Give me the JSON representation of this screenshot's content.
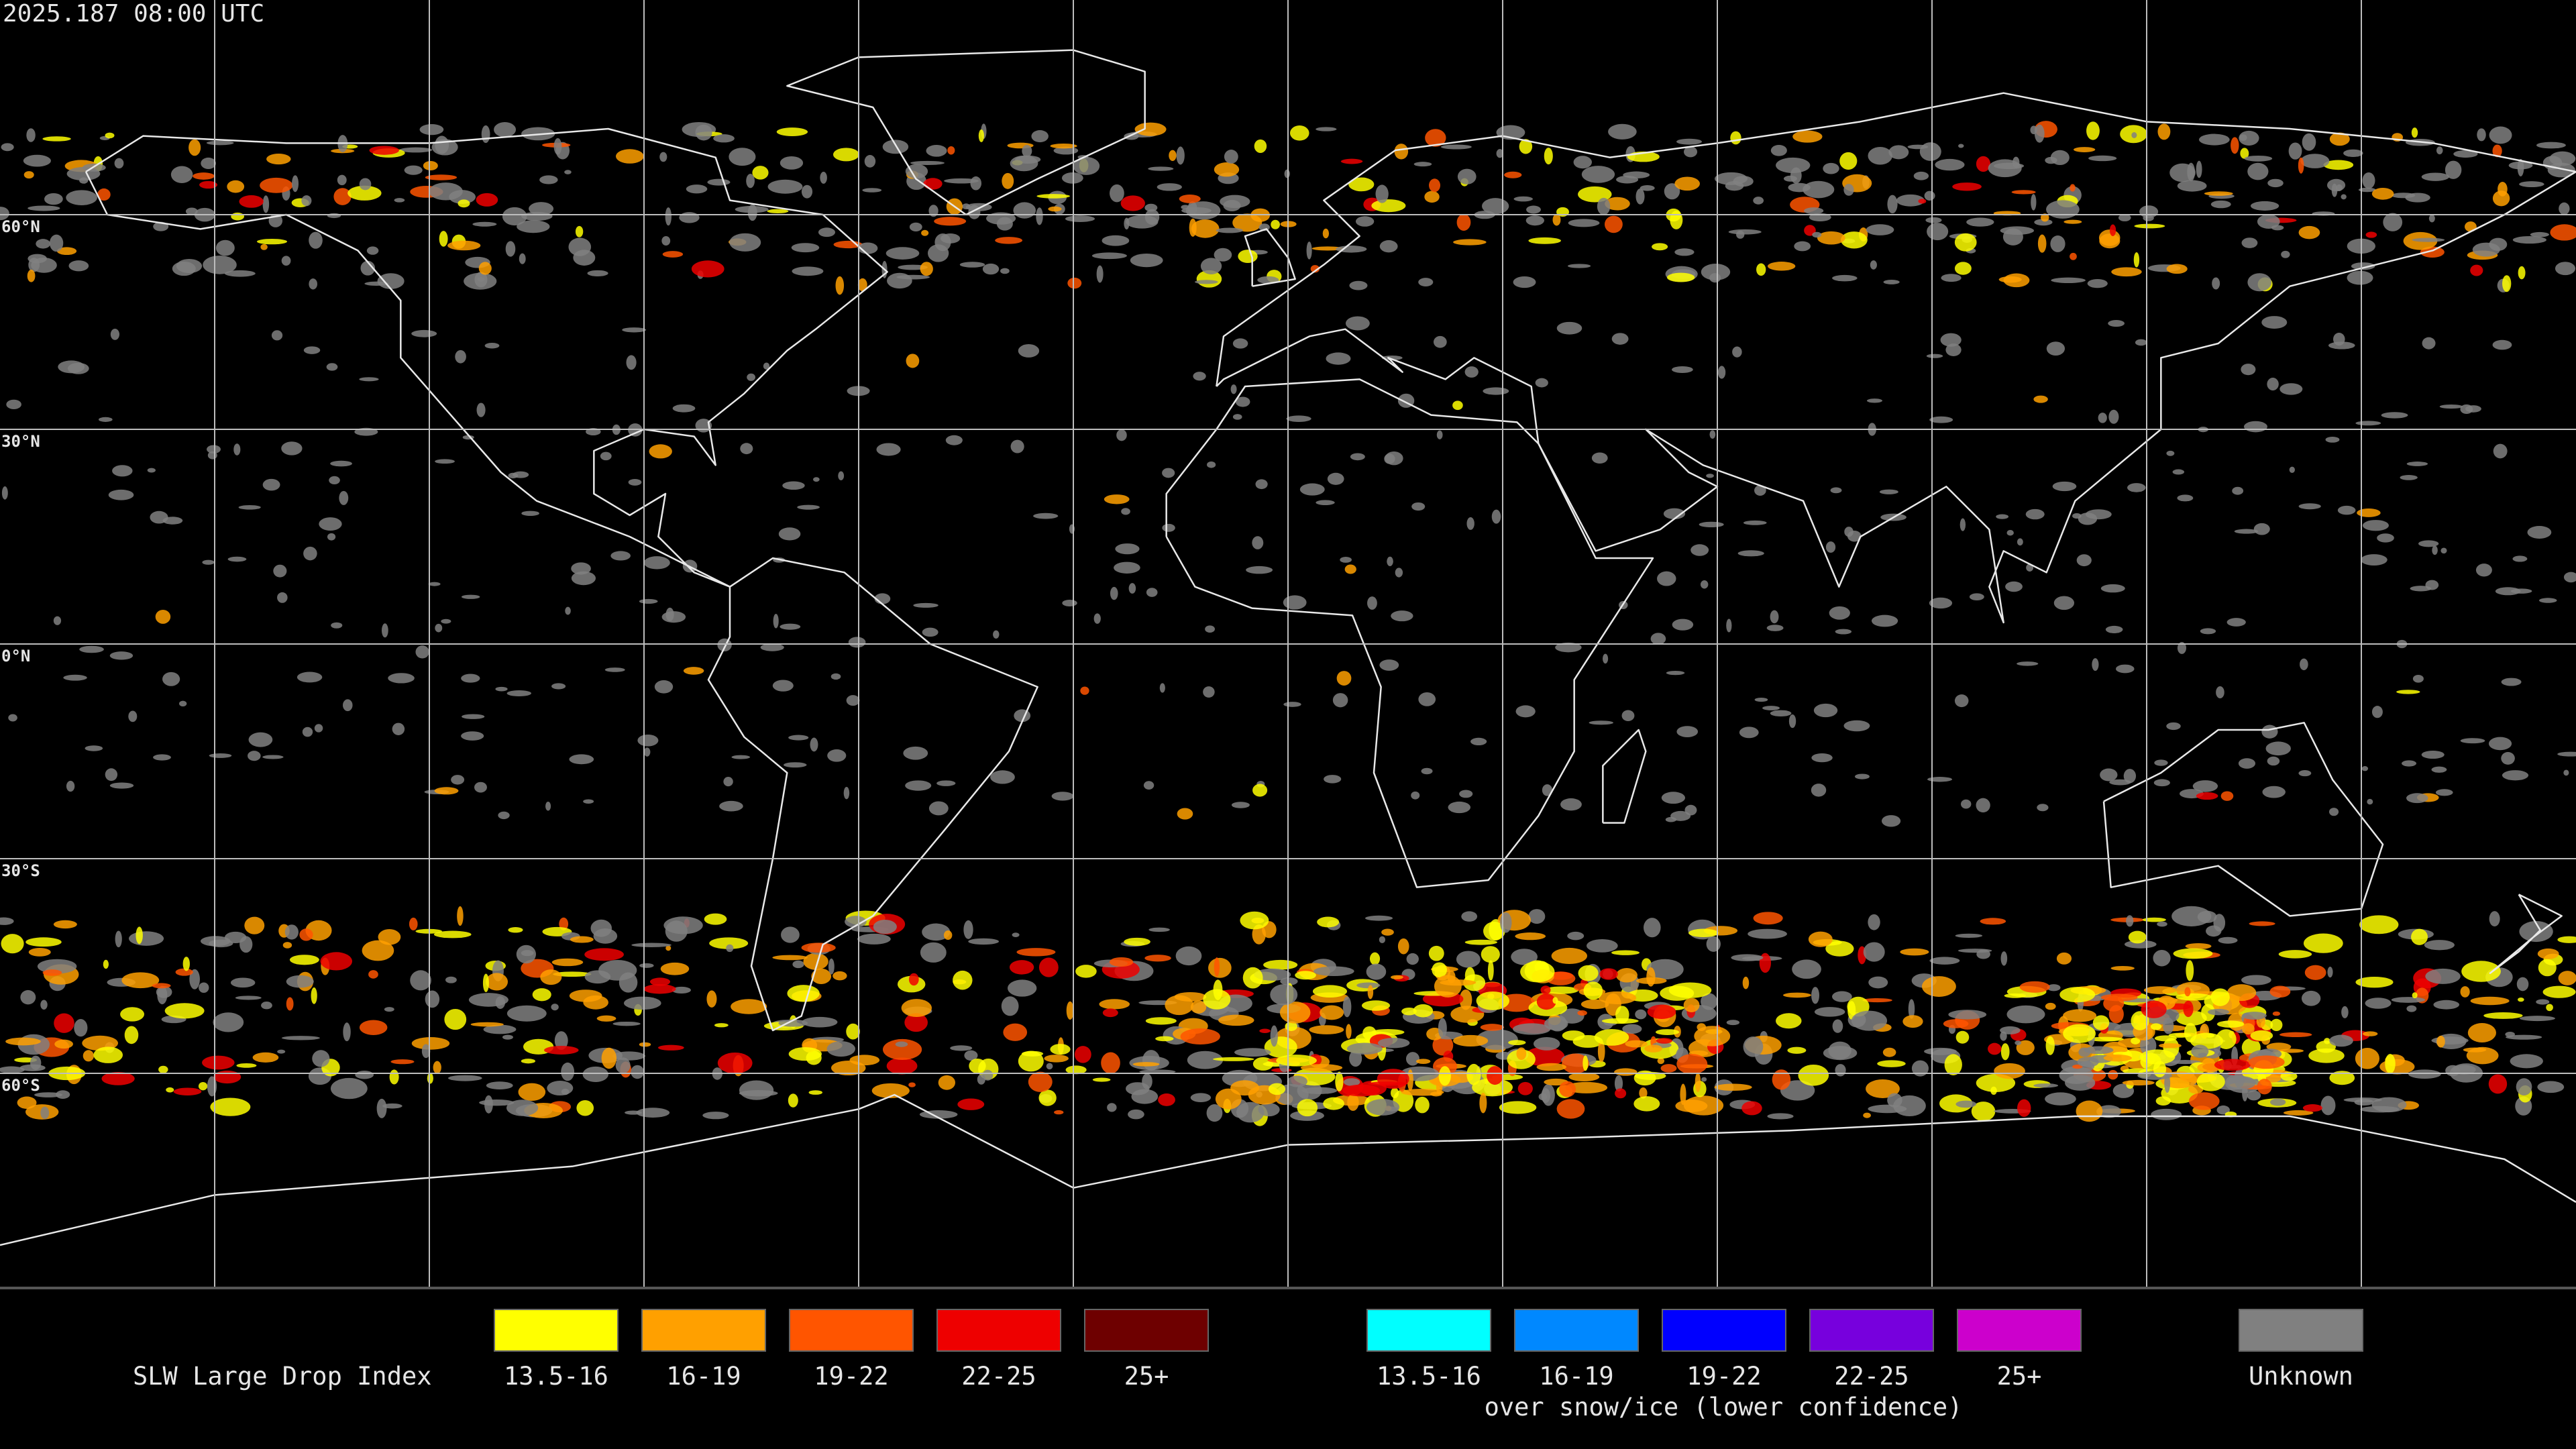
{
  "header": {
    "timestamp": "2025.187 08:00 UTC"
  },
  "map": {
    "latitude_labels": [
      "60°N",
      "30°N",
      "0°N",
      "30°S",
      "60°S"
    ]
  },
  "legend": {
    "title": "SLW Large Drop Index",
    "groups": [
      {
        "items": [
          {
            "label": "13.5-16",
            "color": "#ffff00"
          },
          {
            "label": "16-19",
            "color": "#ffa000"
          },
          {
            "label": "19-22",
            "color": "#ff5500"
          },
          {
            "label": "22-25",
            "color": "#ee0000"
          },
          {
            "label": "25+",
            "color": "#6e0000"
          }
        ]
      },
      {
        "items": [
          {
            "label": "13.5-16",
            "color": "#00ffff"
          },
          {
            "label": "16-19",
            "color": "#0088ff"
          },
          {
            "label": "19-22",
            "color": "#0000ff"
          },
          {
            "label": "22-25",
            "color": "#7700dd"
          },
          {
            "label": "25+",
            "color": "#cc00cc"
          }
        ],
        "note": "over snow/ice (lower confidence)"
      },
      {
        "items": [
          {
            "label": "Unknown",
            "color": "#808080"
          }
        ]
      }
    ]
  }
}
